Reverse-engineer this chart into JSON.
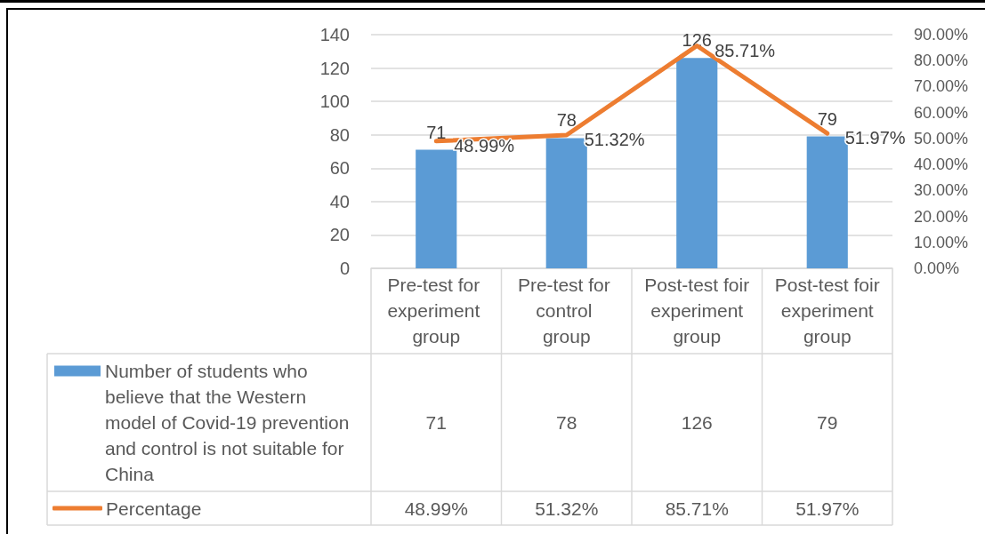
{
  "chart_data": {
    "type": "bar",
    "categories": [
      "Pre-test for experiment group",
      "Pre-test for control group",
      "Post-test foir experiment group",
      "Post-test foir experiment group"
    ],
    "series": [
      {
        "name": "Number of students who believe that the Western model of Covid-19 prevention and control is not suitable for China",
        "color": "#5b9bd5",
        "values": [
          71,
          78,
          126,
          79
        ],
        "value_labels": [
          "71",
          "78",
          "126",
          "79"
        ]
      },
      {
        "name": "Percentage",
        "type": "line",
        "axis": "y2",
        "color": "#ed7d31",
        "values": [
          48.99,
          51.32,
          85.71,
          51.97
        ],
        "value_labels": [
          "48.99%",
          "51.32%",
          "85.71%",
          "51.97%"
        ]
      }
    ],
    "ylim": [
      0,
      140
    ],
    "yticks": [
      0,
      20,
      40,
      60,
      80,
      100,
      120,
      140
    ],
    "y2lim": [
      0,
      90
    ],
    "y2ticks": [
      {
        "value": 0,
        "label": "0.00%"
      },
      {
        "value": 10,
        "label": "10.00%"
      },
      {
        "value": 20,
        "label": "20.00%"
      },
      {
        "value": 30,
        "label": "30.00%"
      },
      {
        "value": 40,
        "label": "40.00%"
      },
      {
        "value": 50,
        "label": "50.00%"
      },
      {
        "value": 60,
        "label": "60.00%"
      },
      {
        "value": 70,
        "label": "70.00%"
      },
      {
        "value": 80,
        "label": "80.00%"
      },
      {
        "value": 90,
        "label": "90.00%"
      }
    ],
    "grid": "y",
    "legend": "bottom",
    "line_style": "solid"
  }
}
